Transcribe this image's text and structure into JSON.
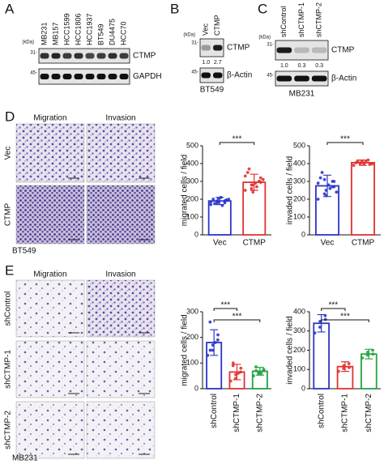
{
  "panels": {
    "A": {
      "letter": "A",
      "kda_label": "(kDa)",
      "lanes": [
        "MB231",
        "MB157",
        "HCC1599",
        "HCC1806",
        "HCC1937",
        "BT549",
        "DU4475",
        "HCC70"
      ],
      "markers": [
        "31-",
        "45-"
      ],
      "bands": [
        "CTMP",
        "GAPDH"
      ]
    },
    "B": {
      "letter": "B",
      "kda_label": "(kDa)",
      "lanes": [
        "Vec",
        "CTMP"
      ],
      "markers": [
        "31-",
        "45-"
      ],
      "bands": [
        "CTMP",
        "β-Actin"
      ],
      "quant": [
        "1.0",
        "2.7"
      ],
      "cell_line": "BT549"
    },
    "C": {
      "letter": "C",
      "kda_label": "(kDa)",
      "lanes": [
        "shControl",
        "shCTMP-1",
        "shCTMP-2"
      ],
      "markers": [
        "31-",
        "45-"
      ],
      "bands": [
        "CTMP",
        "β-Actin"
      ],
      "quant": [
        "1.0",
        "0.3",
        "0.3"
      ],
      "cell_line": "MB231"
    },
    "D": {
      "letter": "D",
      "columns": [
        "Migration",
        "Invasion"
      ],
      "rows": [
        "Vec",
        "CTMP"
      ],
      "cell_line": "BT549"
    },
    "E": {
      "letter": "E",
      "columns": [
        "Migration",
        "Invasion"
      ],
      "rows": [
        "shControl",
        "shCTMP-1",
        "shCTMP-2"
      ],
      "cell_line": "MB231"
    }
  },
  "chart_data": [
    {
      "type": "bar",
      "y_label": "migrated cells / field",
      "categories": [
        "Vec",
        "CTMP"
      ],
      "colors": [
        "#2b35c9",
        "#e0322f"
      ],
      "values": [
        190,
        295
      ],
      "errors": [
        20,
        45
      ],
      "points": [
        [
          170,
          180,
          185,
          190,
          195,
          200,
          175,
          210,
          165,
          200,
          185,
          190,
          205,
          180,
          195
        ],
        [
          250,
          260,
          280,
          300,
          320,
          350,
          370,
          290,
          270,
          310,
          330,
          280,
          240,
          300,
          295
        ]
      ],
      "ylim": [
        0,
        500
      ],
      "yticks": [
        0,
        100,
        200,
        300,
        400,
        500
      ],
      "comparisons": [
        {
          "label": "***",
          "between": [
            "Vec",
            "CTMP"
          ]
        }
      ]
    },
    {
      "type": "bar",
      "y_label": "invaded cells / field",
      "categories": [
        "Vec",
        "CTMP"
      ],
      "colors": [
        "#2b35c9",
        "#e0322f"
      ],
      "values": [
        275,
        405
      ],
      "errors": [
        60,
        15
      ],
      "points": [
        [
          200,
          230,
          250,
          270,
          300,
          320,
          350,
          280,
          260,
          240,
          290,
          310,
          220,
          300,
          270
        ],
        [
          390,
          400,
          410,
          420,
          395,
          405,
          415,
          400,
          410,
          398
        ]
      ],
      "ylim": [
        0,
        500
      ],
      "yticks": [
        0,
        100,
        200,
        300,
        400,
        500
      ],
      "comparisons": [
        {
          "label": "***",
          "between": [
            "Vec",
            "CTMP"
          ]
        }
      ]
    },
    {
      "type": "bar",
      "y_label": "migrated cells / field",
      "categories": [
        "shControl",
        "shCTMP-1",
        "shCTMP-2"
      ],
      "colors": [
        "#2b35c9",
        "#e0322f",
        "#25a244"
      ],
      "values": [
        180,
        65,
        68
      ],
      "errors": [
        50,
        30,
        15
      ],
      "points": [
        [
          130,
          150,
          170,
          190,
          210,
          260,
          150,
          180
        ],
        [
          30,
          40,
          55,
          65,
          80,
          90,
          100,
          60
        ],
        [
          50,
          60,
          65,
          70,
          75,
          85,
          70,
          60
        ]
      ],
      "ylim": [
        0,
        300
      ],
      "yticks": [
        0,
        100,
        200,
        300
      ],
      "comparisons": [
        {
          "label": "***",
          "between": [
            "shControl",
            "shCTMP-1"
          ]
        },
        {
          "label": "***",
          "between": [
            "shControl",
            "shCTMP-2"
          ]
        }
      ]
    },
    {
      "type": "bar",
      "y_label": "invaded cells / field",
      "categories": [
        "shControl",
        "shCTMP-1",
        "shCTMP-2"
      ],
      "colors": [
        "#2b35c9",
        "#e0322f",
        "#25a244"
      ],
      "values": [
        340,
        115,
        180
      ],
      "errors": [
        45,
        25,
        25
      ],
      "points": [
        [
          290,
          320,
          350,
          380,
          360
        ],
        [
          90,
          105,
          120,
          130,
          110
        ],
        [
          160,
          175,
          190,
          200,
          180
        ]
      ],
      "ylim": [
        0,
        400
      ],
      "yticks": [
        0,
        100,
        200,
        300,
        400
      ],
      "comparisons": [
        {
          "label": "***",
          "between": [
            "shControl",
            "shCTMP-1"
          ]
        },
        {
          "label": "***",
          "between": [
            "shControl",
            "shCTMP-2"
          ]
        }
      ]
    }
  ]
}
